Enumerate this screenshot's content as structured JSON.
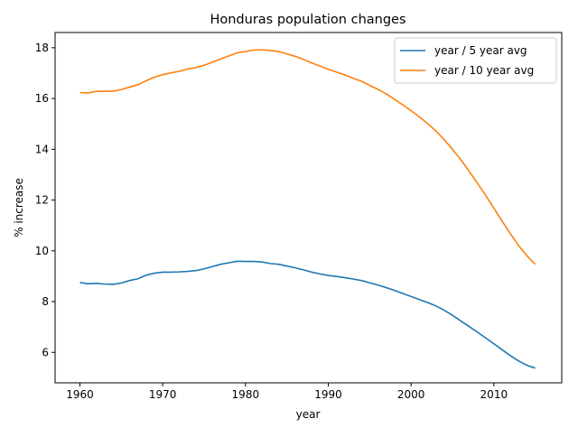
{
  "chart_data": {
    "type": "line",
    "title": "Honduras population changes",
    "xlabel": "year",
    "ylabel": "% increase",
    "xlim": [
      1957,
      2018.2
    ],
    "ylim": [
      4.8,
      18.6
    ],
    "xticks": [
      1960,
      1970,
      1980,
      1990,
      2000,
      2010
    ],
    "yticks": [
      6,
      8,
      10,
      12,
      14,
      16,
      18
    ],
    "grid": false,
    "legend": "top-right",
    "series": [
      {
        "name": "year / 5 year avg",
        "color": "#1f77b4",
        "x": [
          1960,
          1961,
          1962,
          1963,
          1964,
          1965,
          1966,
          1967,
          1968,
          1969,
          1970,
          1971,
          1972,
          1973,
          1974,
          1975,
          1976,
          1977,
          1978,
          1979,
          1980,
          1981,
          1982,
          1983,
          1984,
          1985,
          1986,
          1987,
          1988,
          1989,
          1990,
          1991,
          1992,
          1993,
          1994,
          1995,
          1996,
          1997,
          1998,
          1999,
          2000,
          2001,
          2002,
          2003,
          2004,
          2005,
          2006,
          2007,
          2008,
          2009,
          2010,
          2011,
          2012,
          2013,
          2014,
          2015
        ],
        "y": [
          8.75,
          8.7,
          8.72,
          8.69,
          8.68,
          8.73,
          8.83,
          8.9,
          9.04,
          9.12,
          9.16,
          9.16,
          9.17,
          9.19,
          9.22,
          9.29,
          9.38,
          9.47,
          9.53,
          9.59,
          9.58,
          9.58,
          9.56,
          9.5,
          9.47,
          9.4,
          9.33,
          9.25,
          9.16,
          9.09,
          9.03,
          8.99,
          8.94,
          8.89,
          8.83,
          8.74,
          8.65,
          8.55,
          8.44,
          8.32,
          8.2,
          8.08,
          7.96,
          7.83,
          7.66,
          7.46,
          7.24,
          7.02,
          6.8,
          6.57,
          6.34,
          6.1,
          5.87,
          5.66,
          5.49,
          5.38
        ]
      },
      {
        "name": "year / 10 year avg",
        "color": "#ff7f0e",
        "x": [
          1960,
          1961,
          1962,
          1963,
          1964,
          1965,
          1966,
          1967,
          1968,
          1969,
          1970,
          1971,
          1972,
          1973,
          1974,
          1975,
          1976,
          1977,
          1978,
          1979,
          1980,
          1981,
          1982,
          1983,
          1984,
          1985,
          1986,
          1987,
          1988,
          1989,
          1990,
          1991,
          1992,
          1993,
          1994,
          1995,
          1996,
          1997,
          1998,
          1999,
          2000,
          2001,
          2002,
          2003,
          2004,
          2005,
          2006,
          2007,
          2008,
          2009,
          2010,
          2011,
          2012,
          2013,
          2014,
          2015
        ],
        "y": [
          16.23,
          16.22,
          16.28,
          16.28,
          16.29,
          16.35,
          16.45,
          16.54,
          16.7,
          16.84,
          16.94,
          17.01,
          17.07,
          17.16,
          17.22,
          17.31,
          17.43,
          17.56,
          17.68,
          17.8,
          17.85,
          17.91,
          17.92,
          17.89,
          17.85,
          17.76,
          17.66,
          17.54,
          17.4,
          17.28,
          17.15,
          17.04,
          16.93,
          16.8,
          16.68,
          16.52,
          16.36,
          16.18,
          15.97,
          15.75,
          15.52,
          15.28,
          15.01,
          14.72,
          14.38,
          14.0,
          13.59,
          13.14,
          12.67,
          12.19,
          11.68,
          11.17,
          10.67,
          10.2,
          9.8,
          9.47
        ]
      }
    ]
  }
}
